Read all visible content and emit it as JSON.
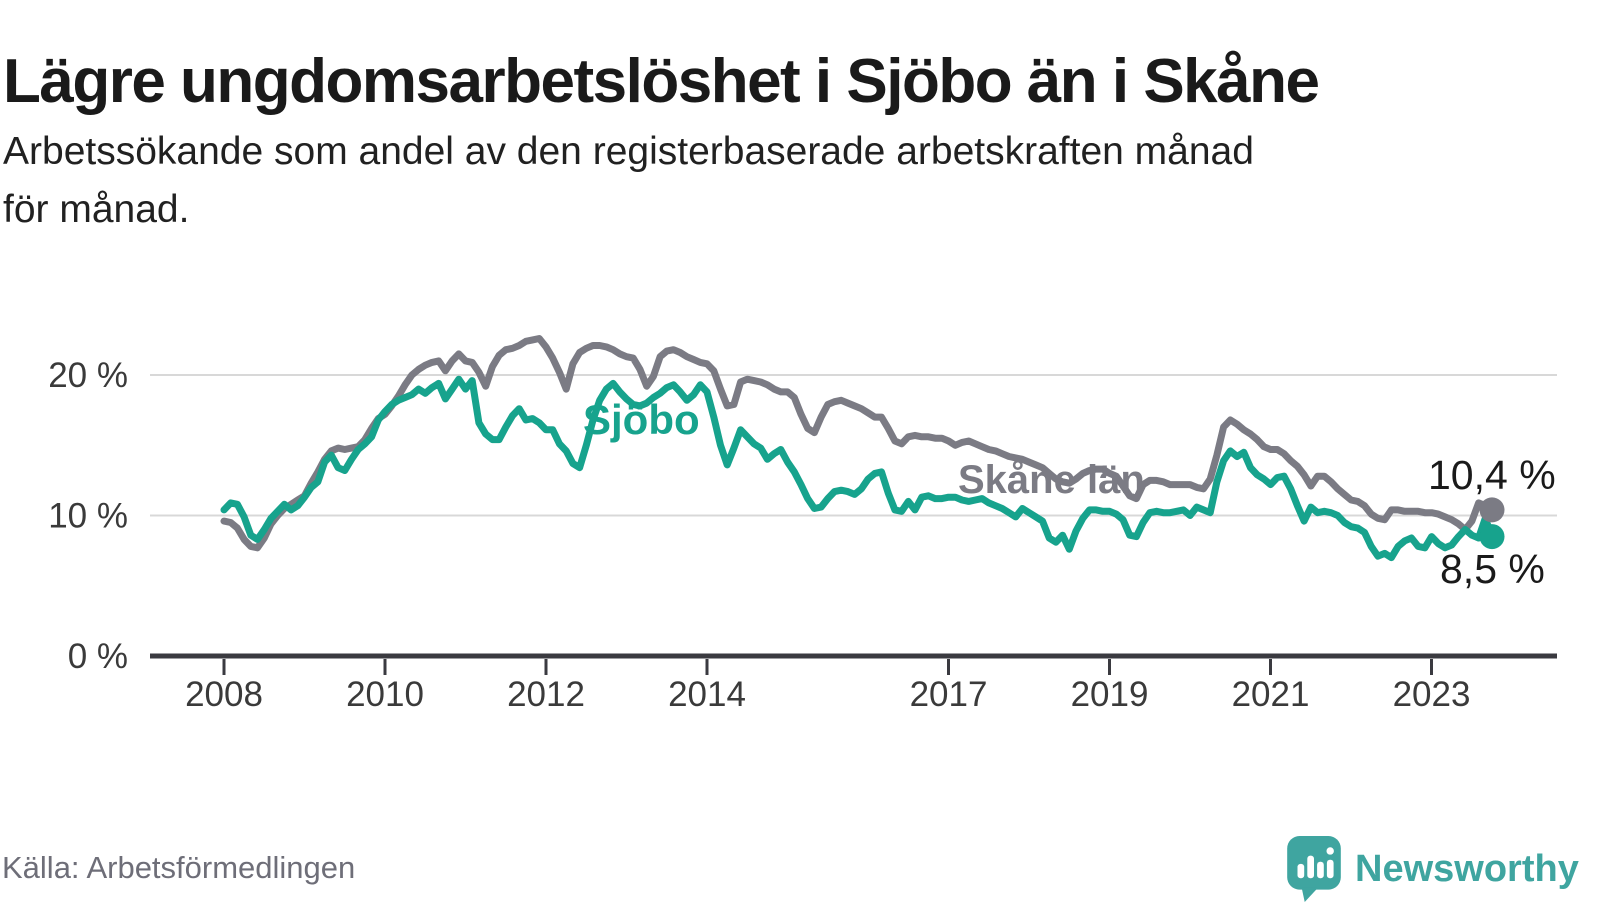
{
  "header": {
    "title": "Lägre ungdomsarbetslöshet i Sjöbo än i Skåne",
    "subtitle_line1": "Arbetssökande som andel av den registerbaserade arbetskraften månad",
    "subtitle_line2": "för månad."
  },
  "footer": {
    "source": "Källa: Arbetsförmedlingen",
    "brand": "Newsworthy",
    "brand_logo_icon": "speech-bubble-bar-chart-icon"
  },
  "colors": {
    "teal_line": "#17a38d",
    "gray_line": "#7b7b84",
    "brand_teal": "#3fa5a0",
    "grid": "#d8d8d8",
    "axis": "#3a3a40",
    "tick_text": "#3a3a3a",
    "text_dark": "#1a1a1a",
    "muted_text": "#6e6e78"
  },
  "chart_data": {
    "type": "line",
    "title": "Lägre ungdomsarbetslöshet i Sjöbo än i Skåne",
    "subtitle": "Arbetssökande som andel av den registerbaserade arbetskraften månad för månad.",
    "frequency": "monthly",
    "x_start": "2008-01",
    "x_end": "2023-10",
    "x_tick_years": [
      2008,
      2010,
      2012,
      2014,
      2017,
      2019,
      2021,
      2023
    ],
    "x_tick_labels": [
      "2008",
      "2010",
      "2012",
      "2014",
      "2017",
      "2019",
      "2021",
      "2023"
    ],
    "y_ticks": [
      0,
      10,
      20
    ],
    "y_tick_labels": [
      "0 %",
      "10 %",
      "20 %"
    ],
    "ylim": [
      0,
      24
    ],
    "grid": true,
    "legend_position": "inline-labels",
    "series": [
      {
        "name": "Skåne län",
        "color": "#7b7b84",
        "end_label": "10,4 %",
        "end_value": 10.4,
        "values": [
          9.6,
          9.5,
          9.1,
          8.3,
          7.8,
          7.7,
          8.4,
          9.4,
          10.0,
          10.5,
          10.8,
          11.1,
          11.4,
          12.3,
          13.1,
          14.0,
          14.6,
          14.8,
          14.7,
          14.8,
          14.9,
          15.4,
          16.2,
          16.9,
          17.2,
          17.8,
          18.5,
          19.3,
          20.0,
          20.4,
          20.7,
          20.9,
          21.0,
          20.3,
          21.0,
          21.5,
          21.0,
          20.9,
          20.2,
          19.2,
          20.6,
          21.4,
          21.8,
          21.9,
          22.1,
          22.4,
          22.5,
          22.6,
          22.0,
          21.2,
          20.2,
          19.0,
          20.8,
          21.6,
          21.9,
          22.1,
          22.1,
          22.0,
          21.8,
          21.5,
          21.3,
          21.2,
          20.4,
          19.2,
          19.9,
          21.3,
          21.7,
          21.8,
          21.6,
          21.3,
          21.1,
          20.9,
          20.8,
          20.3,
          19.0,
          17.8,
          17.9,
          19.5,
          19.7,
          19.6,
          19.5,
          19.3,
          19.0,
          18.8,
          18.8,
          18.4,
          17.2,
          16.2,
          15.9,
          17.0,
          17.9,
          18.1,
          18.2,
          18.0,
          17.8,
          17.6,
          17.3,
          17.0,
          17.0,
          16.2,
          15.3,
          15.1,
          15.6,
          15.7,
          15.6,
          15.6,
          15.5,
          15.5,
          15.3,
          15.0,
          15.2,
          15.3,
          15.1,
          14.9,
          14.7,
          14.6,
          14.4,
          14.2,
          14.1,
          14.0,
          13.8,
          13.6,
          13.4,
          13.0,
          12.6,
          12.4,
          12.3,
          12.6,
          13.0,
          13.2,
          13.3,
          13.3,
          13.0,
          12.8,
          12.1,
          11.4,
          11.2,
          12.2,
          12.5,
          12.5,
          12.4,
          12.2,
          12.2,
          12.2,
          12.2,
          12.0,
          11.9,
          12.6,
          14.3,
          16.3,
          16.8,
          16.5,
          16.1,
          15.8,
          15.4,
          14.9,
          14.7,
          14.7,
          14.4,
          13.9,
          13.5,
          12.9,
          12.1,
          12.8,
          12.8,
          12.4,
          11.9,
          11.5,
          11.1,
          11.0,
          10.7,
          10.1,
          9.8,
          9.7,
          10.4,
          10.4,
          10.3,
          10.3,
          10.3,
          10.2,
          10.2,
          10.1,
          9.9,
          9.7,
          9.4,
          9.0,
          9.6,
          10.9,
          10.7,
          10.4
        ]
      },
      {
        "name": "Sjöbo",
        "color": "#17a38d",
        "end_label": "8,5 %",
        "end_value": 8.5,
        "values": [
          10.4,
          10.9,
          10.8,
          9.9,
          8.6,
          8.3,
          9.0,
          9.8,
          10.3,
          10.8,
          10.4,
          10.7,
          11.3,
          12.0,
          12.4,
          13.8,
          14.3,
          13.4,
          13.2,
          14.0,
          14.7,
          15.1,
          15.6,
          16.8,
          17.4,
          17.9,
          18.2,
          18.4,
          18.6,
          19.0,
          18.7,
          19.1,
          19.4,
          18.3,
          19.0,
          19.7,
          19.0,
          19.6,
          16.6,
          15.8,
          15.4,
          15.4,
          16.3,
          17.1,
          17.6,
          16.8,
          16.9,
          16.6,
          16.1,
          16.1,
          15.1,
          14.6,
          13.7,
          13.4,
          15.0,
          16.8,
          18.2,
          19.0,
          19.4,
          18.8,
          18.3,
          17.9,
          17.8,
          18.0,
          18.4,
          18.7,
          19.1,
          19.3,
          18.8,
          18.2,
          18.6,
          19.3,
          18.8,
          17.0,
          15.0,
          13.6,
          14.8,
          16.1,
          15.6,
          15.1,
          14.8,
          14.0,
          14.4,
          14.7,
          13.8,
          13.1,
          12.2,
          11.2,
          10.5,
          10.6,
          11.2,
          11.7,
          11.8,
          11.7,
          11.5,
          11.9,
          12.6,
          13.0,
          13.1,
          11.6,
          10.4,
          10.3,
          11.0,
          10.4,
          11.3,
          11.4,
          11.2,
          11.2,
          11.3,
          11.3,
          11.1,
          11.0,
          11.1,
          11.2,
          10.9,
          10.7,
          10.5,
          10.2,
          9.9,
          10.5,
          10.2,
          9.9,
          9.6,
          8.4,
          8.1,
          8.6,
          7.6,
          8.9,
          9.8,
          10.4,
          10.4,
          10.3,
          10.3,
          10.1,
          9.7,
          8.6,
          8.5,
          9.5,
          10.2,
          10.3,
          10.2,
          10.2,
          10.3,
          10.4,
          10.0,
          10.6,
          10.4,
          10.2,
          12.4,
          13.9,
          14.6,
          14.2,
          14.5,
          13.4,
          12.9,
          12.6,
          12.2,
          12.7,
          12.8,
          11.9,
          10.7,
          9.6,
          10.6,
          10.2,
          10.3,
          10.2,
          10.0,
          9.5,
          9.2,
          9.1,
          8.8,
          7.8,
          7.1,
          7.3,
          7.0,
          7.8,
          8.2,
          8.4,
          7.8,
          7.7,
          8.5,
          8.0,
          7.7,
          7.9,
          8.5,
          9.0,
          8.6,
          8.4,
          9.8,
          8.5
        ]
      }
    ]
  }
}
